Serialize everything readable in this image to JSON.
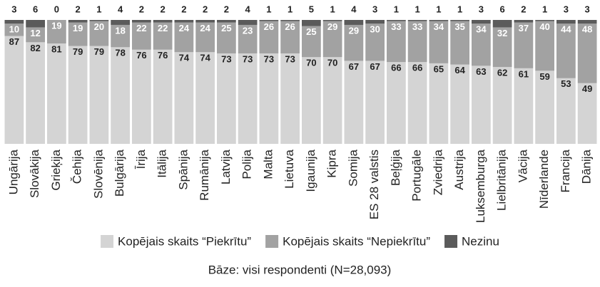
{
  "chart_data": {
    "type": "stacked_bar",
    "categories": [
      "Ungārija",
      "Slovākija",
      "Grieķija",
      "Čehija",
      "Slovēnija",
      "Bulgārija",
      "Īrija",
      "Itālija",
      "Spānija",
      "Rumānija",
      "Latvija",
      "Polija",
      "Malta",
      "Lietuva",
      "Igaunija",
      "Kipra",
      "Somija",
      "ES 28 valstis",
      "Beļģija",
      "Portugāle",
      "Zviedrija",
      "Austrija",
      "Luksemburga",
      "Lielbritānija",
      "Vācija",
      "Nīderlande",
      "Francija",
      "Dānija"
    ],
    "series": [
      {
        "name": "Kopējais skaits “Piekrītu”",
        "color": "#d4d4d4",
        "values": [
          87,
          82,
          81,
          79,
          79,
          78,
          76,
          76,
          74,
          74,
          73,
          73,
          73,
          73,
          70,
          70,
          67,
          67,
          66,
          66,
          65,
          64,
          63,
          62,
          61,
          59,
          53,
          49
        ]
      },
      {
        "name": "Kopējais skaits “Nepiekrītu”",
        "color": "#a2a2a2",
        "values": [
          10,
          12,
          19,
          19,
          20,
          18,
          22,
          22,
          24,
          24,
          25,
          23,
          26,
          26,
          25,
          29,
          29,
          30,
          33,
          33,
          34,
          35,
          34,
          32,
          37,
          40,
          44,
          48
        ]
      },
      {
        "name": "Nezinu",
        "color": "#5b5b5b",
        "values": [
          3,
          6,
          0,
          2,
          1,
          4,
          2,
          2,
          2,
          2,
          2,
          4,
          1,
          1,
          5,
          1,
          4,
          3,
          1,
          1,
          1,
          1,
          3,
          6,
          2,
          1,
          3,
          3
        ]
      }
    ],
    "footnote": "Bāze: visi respondenti (N=28,093)"
  }
}
